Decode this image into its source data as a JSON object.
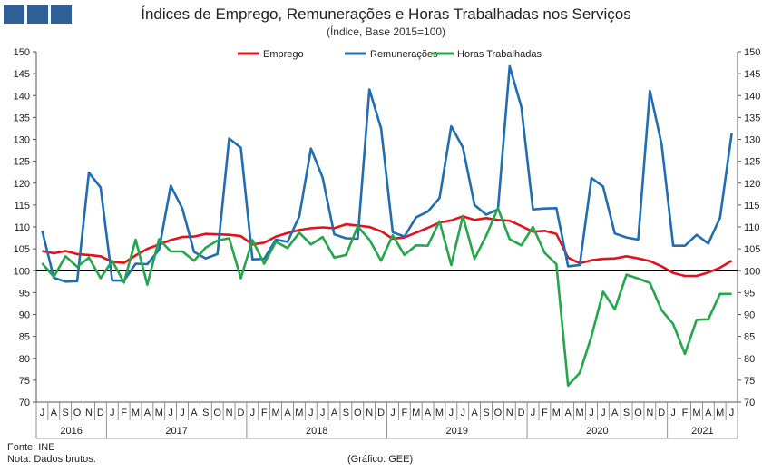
{
  "title": "Índices de Emprego, Remunerações e Horas Trabalhadas nos Serviços",
  "subtitle": "(Índice, Base 2015=100)",
  "footer": {
    "source": "Fonte: INE",
    "note": "Nota: Dados brutos.",
    "credit": "(Gráfico: GEE)"
  },
  "colors": {
    "emprego": "#e3121a",
    "remuneracoes": "#1f6db3",
    "horas": "#22a84a",
    "logo": "#2e5f96"
  },
  "chart_data": {
    "type": "line",
    "ylim": [
      70,
      150
    ],
    "yticks": [
      70,
      75,
      80,
      85,
      90,
      95,
      100,
      105,
      110,
      115,
      120,
      125,
      130,
      135,
      140,
      145,
      150
    ],
    "reference_line": 100,
    "legend_position": "top-center",
    "months": [
      "J",
      "A",
      "S",
      "O",
      "N",
      "D",
      "J",
      "F",
      "M",
      "A",
      "M",
      "J",
      "J",
      "A",
      "S",
      "O",
      "N",
      "D",
      "J",
      "F",
      "M",
      "A",
      "M",
      "J",
      "J",
      "A",
      "S",
      "O",
      "N",
      "D",
      "J",
      "F",
      "M",
      "A",
      "M",
      "J",
      "J",
      "A",
      "S",
      "O",
      "N",
      "D",
      "J",
      "F",
      "M",
      "A",
      "M",
      "J",
      "J",
      "A",
      "S",
      "O",
      "N",
      "D",
      "J",
      "F",
      "M",
      "A",
      "M",
      "J"
    ],
    "years": [
      {
        "label": "2016",
        "start": 0,
        "end": 6
      },
      {
        "label": "2017",
        "start": 6,
        "end": 18
      },
      {
        "label": "2018",
        "start": 18,
        "end": 30
      },
      {
        "label": "2019",
        "start": 30,
        "end": 42
      },
      {
        "label": "2020",
        "start": 42,
        "end": 54
      },
      {
        "label": "2021",
        "start": 54,
        "end": 60
      }
    ],
    "series": [
      {
        "name": "Emprego",
        "color": "#e3121a",
        "values": [
          104.5,
          104.0,
          104.5,
          103.8,
          103.6,
          103.3,
          102.0,
          101.8,
          103.5,
          105.0,
          106.0,
          107.0,
          107.7,
          107.8,
          108.4,
          108.3,
          108.2,
          107.9,
          106.0,
          106.4,
          107.8,
          108.6,
          109.3,
          109.7,
          109.9,
          109.7,
          110.6,
          110.3,
          110.0,
          109.0,
          107.3,
          107.6,
          108.7,
          109.8,
          111.0,
          111.5,
          112.4,
          111.6,
          112.0,
          111.6,
          111.4,
          110.2,
          108.9,
          109.1,
          108.4,
          103.0,
          101.7,
          102.4,
          102.7,
          102.8,
          103.3,
          102.8,
          102.2,
          101.0,
          99.5,
          98.8,
          98.8,
          99.6,
          100.7,
          102.3
        ]
      },
      {
        "name": "Remunerações",
        "color": "#1f6db3",
        "values": [
          109.2,
          98.4,
          97.5,
          97.6,
          122.4,
          119.0,
          97.8,
          97.7,
          101.6,
          101.5,
          104.8,
          119.4,
          114.2,
          104.3,
          102.8,
          103.8,
          130.2,
          128.1,
          102.6,
          102.7,
          107.1,
          106.6,
          112.4,
          127.9,
          121.3,
          108.3,
          107.4,
          107.3,
          141.4,
          132.5,
          108.8,
          107.8,
          112.2,
          113.5,
          116.6,
          133.0,
          128.2,
          115.0,
          112.8,
          114.0,
          146.7,
          137.4,
          114.0,
          114.2,
          114.3,
          101.0,
          101.3,
          121.2,
          119.2,
          108.5,
          107.6,
          107.1,
          141.1,
          128.9,
          105.7,
          105.7,
          108.2,
          106.2,
          112.1,
          131.4
        ]
      },
      {
        "name": "Horas Trabalhadas",
        "color": "#22a84a",
        "values": [
          101.7,
          98.6,
          103.3,
          100.9,
          103.0,
          98.3,
          102.3,
          97.3,
          107.1,
          96.8,
          107.2,
          104.4,
          104.4,
          102.3,
          105.3,
          106.9,
          107.4,
          98.3,
          107.0,
          101.6,
          106.6,
          105.2,
          108.7,
          106.0,
          107.7,
          103.0,
          103.6,
          110.1,
          107.1,
          102.3,
          108.1,
          103.6,
          105.8,
          105.7,
          111.3,
          101.3,
          112.5,
          102.7,
          108.0,
          114.3,
          107.2,
          105.8,
          110.0,
          104.1,
          101.5,
          73.8,
          76.7,
          85.0,
          95.2,
          91.2,
          99.1,
          98.2,
          97.2,
          91.0,
          87.8,
          81.0,
          88.8,
          88.9,
          94.7,
          94.7
        ]
      }
    ]
  }
}
